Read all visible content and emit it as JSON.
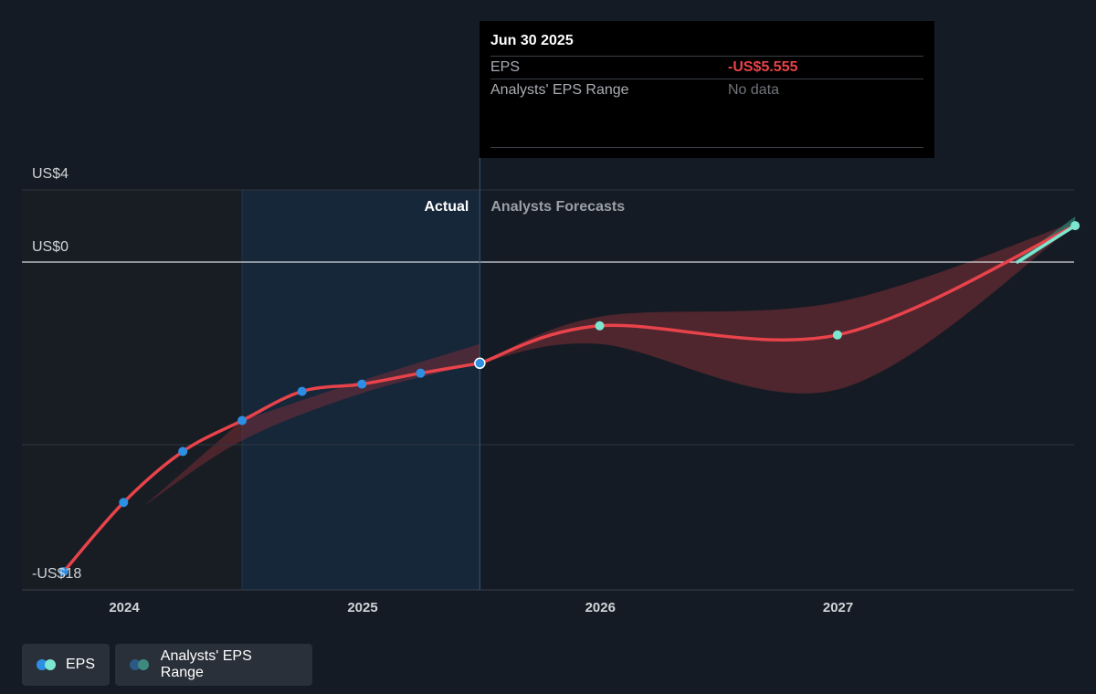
{
  "chart_data": {
    "type": "line",
    "y_ticks": [
      {
        "value": 4,
        "label": "US$4"
      },
      {
        "value": 0,
        "label": "US$0"
      },
      {
        "value": -18,
        "label": "-US$18"
      }
    ],
    "x_ticks": [
      {
        "value": "2024-01-01",
        "label": "2024"
      },
      {
        "value": "2025-01-01",
        "label": "2025"
      },
      {
        "value": "2026-01-01",
        "label": "2026"
      },
      {
        "value": "2027-01-01",
        "label": "2027"
      }
    ],
    "ylim": [
      -18,
      4
    ],
    "region_labels": {
      "actual": "Actual",
      "forecast": "Analysts Forecasts"
    },
    "actual_eps": [
      {
        "date": "2023-09-30",
        "value": -17.0
      },
      {
        "date": "2023-12-31",
        "value": -13.2
      },
      {
        "date": "2024-03-31",
        "value": -10.4
      },
      {
        "date": "2024-06-30",
        "value": -8.7
      },
      {
        "date": "2024-09-30",
        "value": -7.1
      },
      {
        "date": "2024-12-31",
        "value": -6.7
      },
      {
        "date": "2025-03-31",
        "value": -6.1
      },
      {
        "date": "2025-06-30",
        "value": -5.555
      }
    ],
    "forecast_eps": [
      {
        "date": "2025-06-30",
        "value": -5.555
      },
      {
        "date": "2025-12-31",
        "value": -3.5
      },
      {
        "date": "2026-12-31",
        "value": -4.0
      },
      {
        "date": "2027-12-31",
        "value": 2.0
      }
    ],
    "forecast_range": {
      "upper": [
        {
          "date": "2025-06-30",
          "value": -5.555
        },
        {
          "date": "2025-12-31",
          "value": -3.0
        },
        {
          "date": "2026-12-31",
          "value": -2.2
        },
        {
          "date": "2027-12-31",
          "value": 2.2
        }
      ],
      "lower": [
        {
          "date": "2025-06-30",
          "value": -5.555
        },
        {
          "date": "2025-12-31",
          "value": -4.5
        },
        {
          "date": "2026-12-31",
          "value": -7.0
        },
        {
          "date": "2027-12-31",
          "value": 2.0
        }
      ]
    },
    "past_range": {
      "upper": [
        {
          "date": "2024-06-30",
          "value": -8.7
        },
        {
          "date": "2024-12-31",
          "value": -6.5
        },
        {
          "date": "2025-06-30",
          "value": -4.5
        }
      ],
      "lower": [
        {
          "date": "2024-01-31",
          "value": -13.4
        },
        {
          "date": "2024-06-30",
          "value": -9.8
        },
        {
          "date": "2024-12-31",
          "value": -7.2
        },
        {
          "date": "2025-06-30",
          "value": -5.555
        }
      ]
    },
    "colors": {
      "eps_line": "#e8434a",
      "actual_marker": "#2c8fe3",
      "forecast_marker": "#7de6cf",
      "range_fill": "#8a2f38",
      "range_fill_positive": "#2f7f74",
      "past_shade": "#1a2432",
      "actual_region": "#16273a"
    },
    "grid": true,
    "legend_position": "bottom-left"
  },
  "tooltip": {
    "date": "Jun 30 2025",
    "eps_label": "EPS",
    "eps_value": "-US$5.555",
    "range_label": "Analysts' EPS Range",
    "range_value": "No data"
  },
  "legend": {
    "eps_label": "EPS",
    "range_label": "Analysts' EPS Range"
  }
}
